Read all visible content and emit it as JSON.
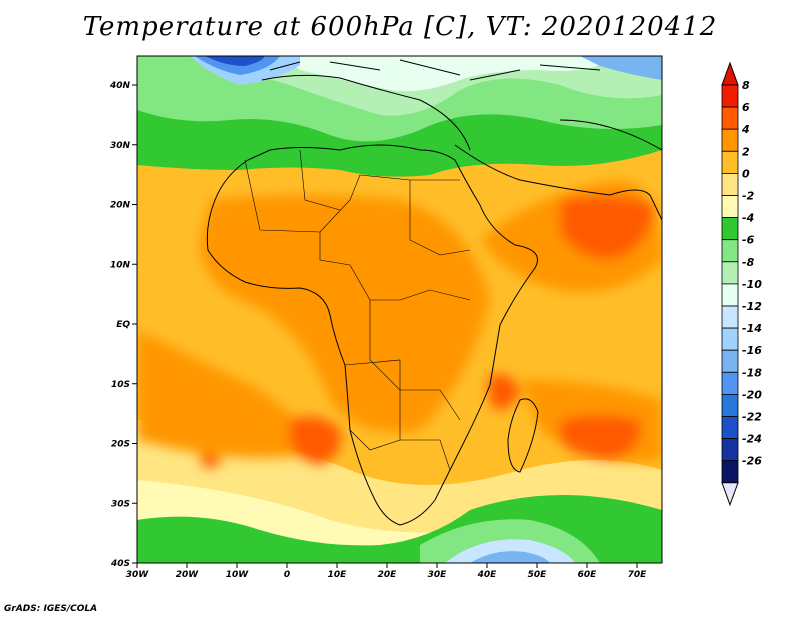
{
  "title": "Temperature at 600hPa [C], VT: 2020120412",
  "footer": "GrADS: IGES/COLA",
  "map": {
    "lat_labels": [
      "40N",
      "30N",
      "20N",
      "10N",
      "EQ",
      "10S",
      "20S",
      "30S",
      "40S"
    ],
    "lon_labels": [
      "30W",
      "20W",
      "10W",
      "0",
      "10E",
      "20E",
      "30E",
      "40E",
      "50E",
      "60E",
      "70E"
    ]
  },
  "colorbar": {
    "labels": [
      "8",
      "6",
      "4",
      "2",
      "0",
      "-2",
      "-4",
      "-6",
      "-8",
      "-10",
      "-12",
      "-14",
      "-16",
      "-18",
      "-20",
      "-22",
      "-24",
      "-26"
    ],
    "colors": [
      "#f01e00",
      "#ff5a00",
      "#ff9600",
      "#ffbe28",
      "#ffe682",
      "#fffab4",
      "#32c832",
      "#82e682",
      "#b4f0b4",
      "#e6fff0",
      "#c8e6ff",
      "#a0d2ff",
      "#78b4f0",
      "#5096f0",
      "#2878dc",
      "#1e50c8",
      "#1432a0",
      "#0a1464"
    ]
  }
}
